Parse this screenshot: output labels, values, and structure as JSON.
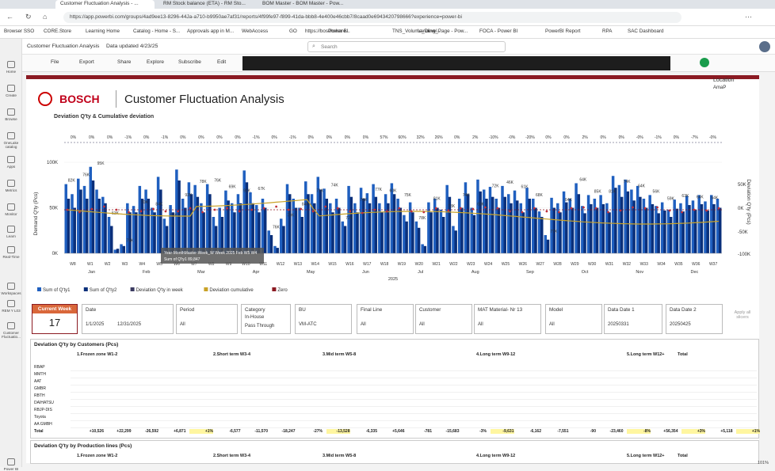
{
  "browser": {
    "tabs": [
      "Customer Fluctuation Analysis - ...",
      "RM Stock balance (ETA) - RM Sto...",
      "BOM Master - BOM Master - Pow..."
    ],
    "url": "https://app.powerbi.com/groups/4ad9ee13-8296-44Ja-a710-b9950ae7af31/reports/4f99fe97-f899-41da-bbb8-4e400e46cbb7/8caad0e6943420798666?experience=power-bi",
    "bookmarks": [
      "Browser SSO",
      "CORE.Store",
      "Learning Home",
      "Catalog - Home - S...",
      "Approvals app in M...",
      "WebAccess",
      "GO",
      "https://boschshare...",
      "Power BI",
      "TNS_Volume_Devel...",
      "Landing_Page - Pow...",
      "FOCA - Power BI",
      "PowerBI Report",
      "RPA",
      "SAC Dashboard"
    ]
  },
  "rail": [
    "Home",
    "Create",
    "Browse",
    "OneLake catalog",
    "Apps",
    "Metrics",
    "Monitor",
    "Learn",
    "Real-Time",
    "Workspaces",
    "REM Y L03",
    "Customer Fluctuatio...",
    "Power BI"
  ],
  "header": {
    "report": "Customer Fluctuation Analysis",
    "updated": "Data updated 4/23/25",
    "search": "Search"
  },
  "toolbar": {
    "file": "File",
    "export": "Export",
    "share": "Share",
    "explore": "Explore",
    "subscribe": "Subscribe",
    "edit": "Edit"
  },
  "report": {
    "logo": "BOSCH",
    "title": "Customer Fluctuation Analysis",
    "chart_title": "Deviation Q'ty & Cumulative deviation",
    "location_label": "Location",
    "location_value": "AmaP"
  },
  "chart_data": {
    "type": "bar",
    "ylabel": "Demand Q'ty (Pcs)",
    "y2label": "Deviation Q'ty (Pcs)",
    "y_ticks": [
      "100K",
      "50K",
      "0K"
    ],
    "y2_ticks": [
      "50K",
      "0K",
      "-50K",
      "-100K"
    ],
    "months": [
      "Jan",
      "Feb",
      "Mar",
      "Apr",
      "May",
      "Jun",
      "Jul",
      "Aug",
      "Sep",
      "Oct",
      "Nov",
      "Dec"
    ],
    "year": "2025",
    "week_labels": [
      "W8",
      "W1",
      "W2",
      "W3",
      "W4",
      "W5",
      "W6",
      "W7",
      "W8",
      "W9",
      "W10",
      "W11",
      "W12",
      "W13",
      "W14",
      "W15",
      "W16",
      "W17",
      "W18",
      "W19",
      "W20",
      "W21",
      "W22",
      "W23",
      "W24",
      "W25",
      "W26",
      "W27",
      "W28",
      "W29",
      "W30",
      "W31",
      "W32",
      "W33",
      "W34",
      "W35",
      "W36",
      "W37"
    ],
    "bar_labels": [
      "82K",
      "76K",
      "95K",
      "53K",
      "74K",
      "70K",
      "84K",
      "53K",
      "92K",
      "78K",
      "76K",
      "69K",
      "91K",
      "67K",
      "76K",
      "79K",
      "84K",
      "71K",
      "74K",
      "72K",
      "76K",
      "77K",
      "60K",
      "75K",
      "78K",
      "81K",
      "73K",
      "74K",
      "69K",
      "72K",
      "46K",
      "61K",
      "68K",
      "77K",
      "64K",
      "64K",
      "85K",
      "81K",
      "74K",
      "64K",
      "56K",
      "59K",
      "63K",
      "64K",
      "64K"
    ],
    "q1": [
      76,
      65,
      82,
      74,
      95,
      70,
      62,
      40,
      4,
      10,
      55,
      52,
      74,
      70,
      50,
      84,
      38,
      53,
      92,
      60,
      78,
      75,
      55,
      76,
      40,
      50,
      69,
      55,
      65,
      91,
      67,
      53,
      60,
      25,
      8,
      38,
      76,
      60,
      50,
      79,
      65,
      84,
      71,
      55,
      60,
      35,
      74,
      55,
      72,
      66,
      76,
      55,
      65,
      77,
      60,
      42,
      56,
      35,
      10,
      56,
      60,
      48,
      75,
      30,
      60,
      78,
      50,
      81,
      70,
      73,
      60,
      74,
      65,
      69,
      55,
      72,
      60,
      46,
      20,
      61,
      55,
      68,
      60,
      77,
      52,
      64,
      60,
      64,
      55,
      85,
      75,
      81,
      70,
      74,
      60,
      64,
      52,
      56,
      48,
      59,
      55,
      63,
      58,
      64,
      57,
      64,
      60
    ],
    "q2": [
      60,
      50,
      70,
      60,
      80,
      60,
      55,
      30,
      5,
      8,
      45,
      45,
      60,
      60,
      45,
      70,
      30,
      45,
      80,
      50,
      65,
      62,
      45,
      65,
      30,
      40,
      58,
      45,
      55,
      78,
      55,
      45,
      50,
      20,
      6,
      30,
      65,
      50,
      40,
      65,
      55,
      70,
      60,
      45,
      50,
      30,
      62,
      45,
      60,
      55,
      62,
      45,
      55,
      65,
      50,
      35,
      45,
      28,
      8,
      45,
      50,
      40,
      62,
      25,
      50,
      65,
      42,
      68,
      60,
      62,
      50,
      62,
      55,
      58,
      45,
      60,
      50,
      40,
      15,
      50,
      45,
      56,
      50,
      65,
      44,
      54,
      50,
      54,
      45,
      72,
      62,
      68,
      58,
      62,
      50,
      54,
      44,
      47,
      40,
      49,
      46,
      53,
      48,
      54,
      47,
      54,
      50
    ],
    "deviation_pct": [
      "0%",
      "0%",
      "0%",
      "-1%",
      "0%",
      "-1%",
      "0%",
      "0%",
      "0%",
      "0%",
      "-1%",
      "0%",
      "-1%",
      "0%",
      "0%",
      "0%",
      "0%",
      "57%",
      "60%",
      "32%",
      "26%",
      "0%",
      "2%",
      "-10%",
      "-0%",
      "-20%",
      "0%",
      "0%",
      "2%",
      "0%",
      "0%",
      "-0%",
      "-1%",
      "0%",
      "-7%",
      "-0%"
    ],
    "legend": [
      "Sum of Q'ty1",
      "Sum of Q'ty2",
      "Deviation Q'ty in week",
      "Deviation cumulative",
      "Zero"
    ],
    "tooltip": [
      "Year-MonthMaster-Week_W Week  2025 Feb W5 W4",
      "Sum of Q'ty1   89,847"
    ]
  },
  "filters": {
    "current_week_label": "Current Week",
    "current_week": "17",
    "date_label": "Date",
    "date_from": "1/1/2025",
    "date_to": "12/31/2025",
    "period_label": "Period",
    "period": "All",
    "category_label": "Category",
    "cat1": "In-House",
    "cat2": "Pass Through",
    "bu_label": "BU",
    "bu": "VM-ATC",
    "final_label": "Final Line",
    "final": "All",
    "customer_label": "Customer",
    "customer": "All",
    "mat_label": "MAT Material- Nr 13",
    "mat": "All",
    "model_label": "Model",
    "model": "All",
    "d1_label": "Data Date 1",
    "d1": "20250331",
    "d2_label": "Data Date 2",
    "d2": "20250425",
    "apply": "Apply all slicers"
  },
  "table1": {
    "title": "Deviation Q'ty by Customers (Pcs)",
    "groups": [
      "1.Frozen zone W1-2",
      "2.Short term W3-4",
      "3.Mid term W5-8",
      "4.Long term W9-12",
      "5.Long term W12+",
      "Total"
    ],
    "rows": [
      "RBAP",
      "MMTH",
      "AAT",
      "GMBR",
      "RBTH",
      "DAIHATSU",
      "RBJP-DIS",
      "Toyota",
      "AA GMBH",
      "Total"
    ],
    "r_total": [
      "+10,526",
      "+22,299",
      "-26,592",
      "+6,871",
      "+1%",
      "-6,577",
      "-11,570",
      "-18,247",
      "-27%",
      "-13,528",
      "-6,335",
      "+5,646",
      "-781",
      "-15,683",
      "-3%",
      "-9,631",
      "-6,162",
      "-7,551",
      "-90",
      "-23,460",
      "-8%",
      "+56,354",
      "+3%",
      "+5,118",
      "+1%"
    ]
  },
  "table2": {
    "title": "Deviation Q'ty by Production lines (Pcs)",
    "groups": [
      "1.Frozen zone W1-2",
      "2.Short term W3-4",
      "3.Mid term W5-8",
      "4.Long term W9-12",
      "5.Long term W12+",
      "Total"
    ]
  },
  "status": {
    "zoom": "101%"
  }
}
